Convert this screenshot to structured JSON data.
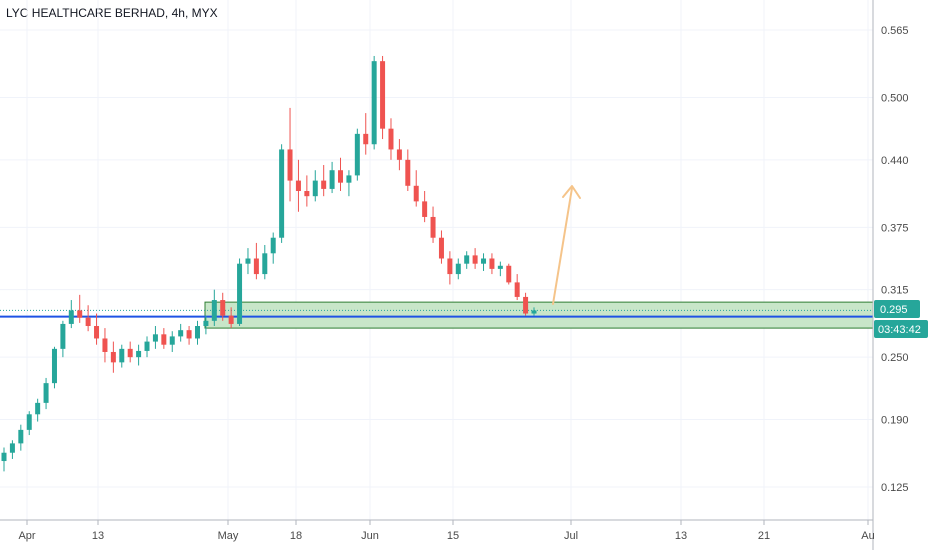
{
  "chart": {
    "title": "LYC HEALTHCARE BERHAD, 4h, MYX",
    "price_label": "0.295",
    "countdown_label": "03:43:42"
  },
  "colors": {
    "up": "#26a69a",
    "down": "#ef5350",
    "zone_fill": "#c8e6c9",
    "zone_border": "#2e7d32",
    "support_line": "#1e53e5",
    "arrow": "#f5c48a",
    "grid": "#f0f3fa",
    "axis_text": "#4a4a4a"
  },
  "chart_data": {
    "type": "candlestick",
    "title": "LYC HEALTHCARE BERHAD, 4h, MYX",
    "y_ticks": [
      "0.565",
      "0.500",
      "0.440",
      "0.375",
      "0.315",
      "0.250",
      "0.190",
      "0.125"
    ],
    "x_ticks": [
      "Apr",
      "13",
      "May",
      "18",
      "Jun",
      "15",
      "Jul",
      "13",
      "21",
      "Au"
    ],
    "last_price": 0.295,
    "support_zone": [
      0.278,
      0.303
    ],
    "support_line": 0.289,
    "candles": [
      [
        0.15,
        0.163,
        0.14,
        0.158
      ],
      [
        0.158,
        0.17,
        0.152,
        0.167
      ],
      [
        0.167,
        0.185,
        0.16,
        0.18
      ],
      [
        0.18,
        0.198,
        0.175,
        0.195
      ],
      [
        0.195,
        0.21,
        0.188,
        0.206
      ],
      [
        0.206,
        0.23,
        0.2,
        0.225
      ],
      [
        0.225,
        0.26,
        0.22,
        0.258
      ],
      [
        0.258,
        0.285,
        0.25,
        0.282
      ],
      [
        0.282,
        0.305,
        0.278,
        0.295
      ],
      [
        0.295,
        0.31,
        0.283,
        0.288
      ],
      [
        0.288,
        0.3,
        0.275,
        0.28
      ],
      [
        0.28,
        0.292,
        0.262,
        0.268
      ],
      [
        0.268,
        0.278,
        0.245,
        0.255
      ],
      [
        0.255,
        0.265,
        0.235,
        0.245
      ],
      [
        0.245,
        0.262,
        0.24,
        0.258
      ],
      [
        0.258,
        0.265,
        0.245,
        0.25
      ],
      [
        0.25,
        0.262,
        0.242,
        0.256
      ],
      [
        0.256,
        0.27,
        0.25,
        0.265
      ],
      [
        0.265,
        0.28,
        0.258,
        0.272
      ],
      [
        0.272,
        0.278,
        0.258,
        0.262
      ],
      [
        0.262,
        0.275,
        0.255,
        0.27
      ],
      [
        0.27,
        0.282,
        0.265,
        0.276
      ],
      [
        0.276,
        0.28,
        0.262,
        0.268
      ],
      [
        0.268,
        0.285,
        0.262,
        0.28
      ],
      [
        0.28,
        0.29,
        0.272,
        0.285
      ],
      [
        0.285,
        0.315,
        0.28,
        0.305
      ],
      [
        0.305,
        0.312,
        0.285,
        0.29
      ],
      [
        0.29,
        0.298,
        0.278,
        0.282
      ],
      [
        0.282,
        0.345,
        0.28,
        0.34
      ],
      [
        0.34,
        0.355,
        0.33,
        0.345
      ],
      [
        0.345,
        0.36,
        0.325,
        0.33
      ],
      [
        0.33,
        0.358,
        0.325,
        0.35
      ],
      [
        0.35,
        0.37,
        0.34,
        0.365
      ],
      [
        0.365,
        0.455,
        0.36,
        0.45
      ],
      [
        0.45,
        0.49,
        0.4,
        0.42
      ],
      [
        0.42,
        0.44,
        0.39,
        0.41
      ],
      [
        0.41,
        0.425,
        0.395,
        0.405
      ],
      [
        0.405,
        0.43,
        0.4,
        0.42
      ],
      [
        0.42,
        0.435,
        0.405,
        0.412
      ],
      [
        0.412,
        0.438,
        0.408,
        0.43
      ],
      [
        0.43,
        0.442,
        0.41,
        0.418
      ],
      [
        0.418,
        0.43,
        0.405,
        0.425
      ],
      [
        0.425,
        0.47,
        0.42,
        0.465
      ],
      [
        0.465,
        0.485,
        0.445,
        0.455
      ],
      [
        0.455,
        0.54,
        0.45,
        0.535
      ],
      [
        0.535,
        0.54,
        0.46,
        0.47
      ],
      [
        0.47,
        0.48,
        0.44,
        0.45
      ],
      [
        0.45,
        0.46,
        0.43,
        0.44
      ],
      [
        0.44,
        0.45,
        0.41,
        0.415
      ],
      [
        0.415,
        0.43,
        0.395,
        0.4
      ],
      [
        0.4,
        0.41,
        0.38,
        0.385
      ],
      [
        0.385,
        0.395,
        0.36,
        0.365
      ],
      [
        0.365,
        0.372,
        0.34,
        0.345
      ],
      [
        0.345,
        0.352,
        0.32,
        0.33
      ],
      [
        0.33,
        0.345,
        0.325,
        0.34
      ],
      [
        0.34,
        0.352,
        0.335,
        0.348
      ],
      [
        0.348,
        0.355,
        0.335,
        0.34
      ],
      [
        0.34,
        0.35,
        0.333,
        0.345
      ],
      [
        0.345,
        0.35,
        0.33,
        0.335
      ],
      [
        0.335,
        0.342,
        0.328,
        0.338
      ],
      [
        0.338,
        0.34,
        0.32,
        0.322
      ],
      [
        0.322,
        0.33,
        0.305,
        0.308
      ],
      [
        0.308,
        0.312,
        0.29,
        0.292
      ],
      [
        0.292,
        0.298,
        0.29,
        0.295
      ]
    ]
  }
}
